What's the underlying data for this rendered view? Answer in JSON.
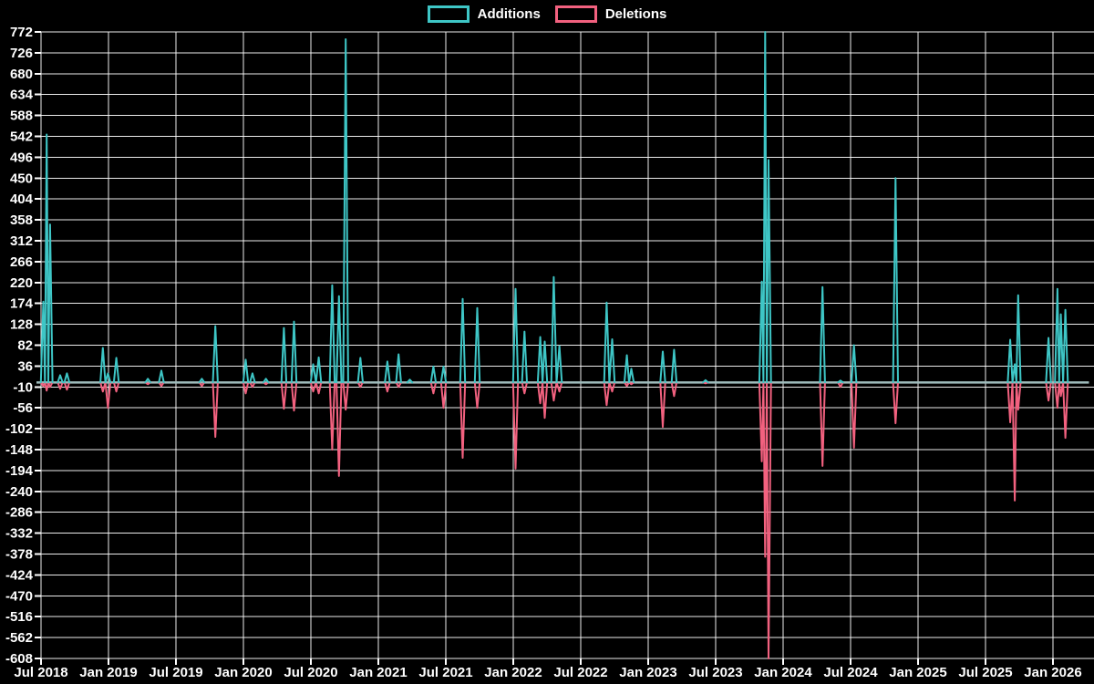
{
  "chart_data": {
    "type": "line",
    "title": "",
    "legend": [
      "Additions",
      "Deletions"
    ],
    "legend_position": "top-center",
    "background": "#000000",
    "grid": true,
    "grid_color": "#ffffff",
    "colors": {
      "additions": "#3ec6c6",
      "deletions": "#f2617f",
      "zero_baseline": "#9fbcbc",
      "text": "#ffffff"
    },
    "x_axis": {
      "labels": [
        "Jul 2018",
        "Jan 2019",
        "Jul 2019",
        "Jan 2020",
        "Jul 2020",
        "Jan 2021",
        "Jul 2021",
        "Jan 2022",
        "Jul 2022",
        "Jan 2023",
        "Jul 2023",
        "Jan 2024",
        "Jul 2024",
        "Jan 2025",
        "Jul 2025",
        "Jan 2026"
      ],
      "start": "2018-07",
      "end": "2026-04"
    },
    "y_axis": {
      "min": -608,
      "max": 772,
      "step": 46,
      "ticks": [
        772,
        726,
        680,
        634,
        588,
        542,
        496,
        450,
        404,
        358,
        312,
        266,
        220,
        174,
        128,
        82,
        36,
        -10,
        -56,
        -102,
        -148,
        -194,
        -240,
        -286,
        -332,
        -378,
        -424,
        -470,
        -516,
        -562,
        -608
      ]
    },
    "t_unit": "months since 2018-07 (weekly additions/deletions spikes, 0 elsewhere)",
    "points_format": [
      "t_months",
      "additions",
      "deletions"
    ],
    "points": [
      [
        0.2,
        178,
        -8
      ],
      [
        0.5,
        546,
        -18
      ],
      [
        0.8,
        348,
        -10
      ],
      [
        1.7,
        16,
        -14
      ],
      [
        2.3,
        20,
        -16
      ],
      [
        5.5,
        76,
        -20
      ],
      [
        5.95,
        20,
        -56
      ],
      [
        6.7,
        54,
        -20
      ],
      [
        9.5,
        8,
        -4
      ],
      [
        10.7,
        26,
        -8
      ],
      [
        14.3,
        8,
        -8
      ],
      [
        15.5,
        124,
        -120
      ],
      [
        18.2,
        50,
        -24
      ],
      [
        18.8,
        20,
        -10
      ],
      [
        20.0,
        8,
        -4
      ],
      [
        21.6,
        120,
        -58
      ],
      [
        22.5,
        134,
        -62
      ],
      [
        24.2,
        40,
        -20
      ],
      [
        24.7,
        55,
        -24
      ],
      [
        25.9,
        214,
        -148
      ],
      [
        26.5,
        190,
        -206
      ],
      [
        27.1,
        756,
        -60
      ],
      [
        28.4,
        54,
        -10
      ],
      [
        30.8,
        46,
        -20
      ],
      [
        31.8,
        62,
        -10
      ],
      [
        32.8,
        6,
        0
      ],
      [
        34.9,
        35,
        -24
      ],
      [
        35.8,
        35,
        -56
      ],
      [
        37.5,
        184,
        -166
      ],
      [
        38.8,
        164,
        -56
      ],
      [
        42.2,
        206,
        -190
      ],
      [
        43.0,
        112,
        -24
      ],
      [
        44.4,
        100,
        -46
      ],
      [
        44.8,
        90,
        -78
      ],
      [
        45.6,
        232,
        -40
      ],
      [
        46.1,
        80,
        -20
      ],
      [
        50.3,
        176,
        -50
      ],
      [
        50.8,
        95,
        -20
      ],
      [
        52.1,
        60,
        -8
      ],
      [
        52.5,
        30,
        -4
      ],
      [
        55.3,
        68,
        -98
      ],
      [
        56.3,
        72,
        -30
      ],
      [
        59.1,
        5,
        -2
      ],
      [
        64.1,
        222,
        -174
      ],
      [
        64.4,
        772,
        -384
      ],
      [
        64.7,
        490,
        -608
      ],
      [
        69.5,
        210,
        -184
      ],
      [
        71.1,
        4,
        -10
      ],
      [
        72.3,
        82,
        -144
      ],
      [
        76.0,
        450,
        -90
      ],
      [
        86.2,
        94,
        -88
      ],
      [
        86.6,
        40,
        -260
      ],
      [
        86.9,
        192,
        -60
      ],
      [
        89.6,
        98,
        -40
      ],
      [
        90.4,
        206,
        -56
      ],
      [
        90.7,
        150,
        -30
      ],
      [
        91.1,
        160,
        -122
      ]
    ],
    "timeline_end_t": 93.2
  }
}
